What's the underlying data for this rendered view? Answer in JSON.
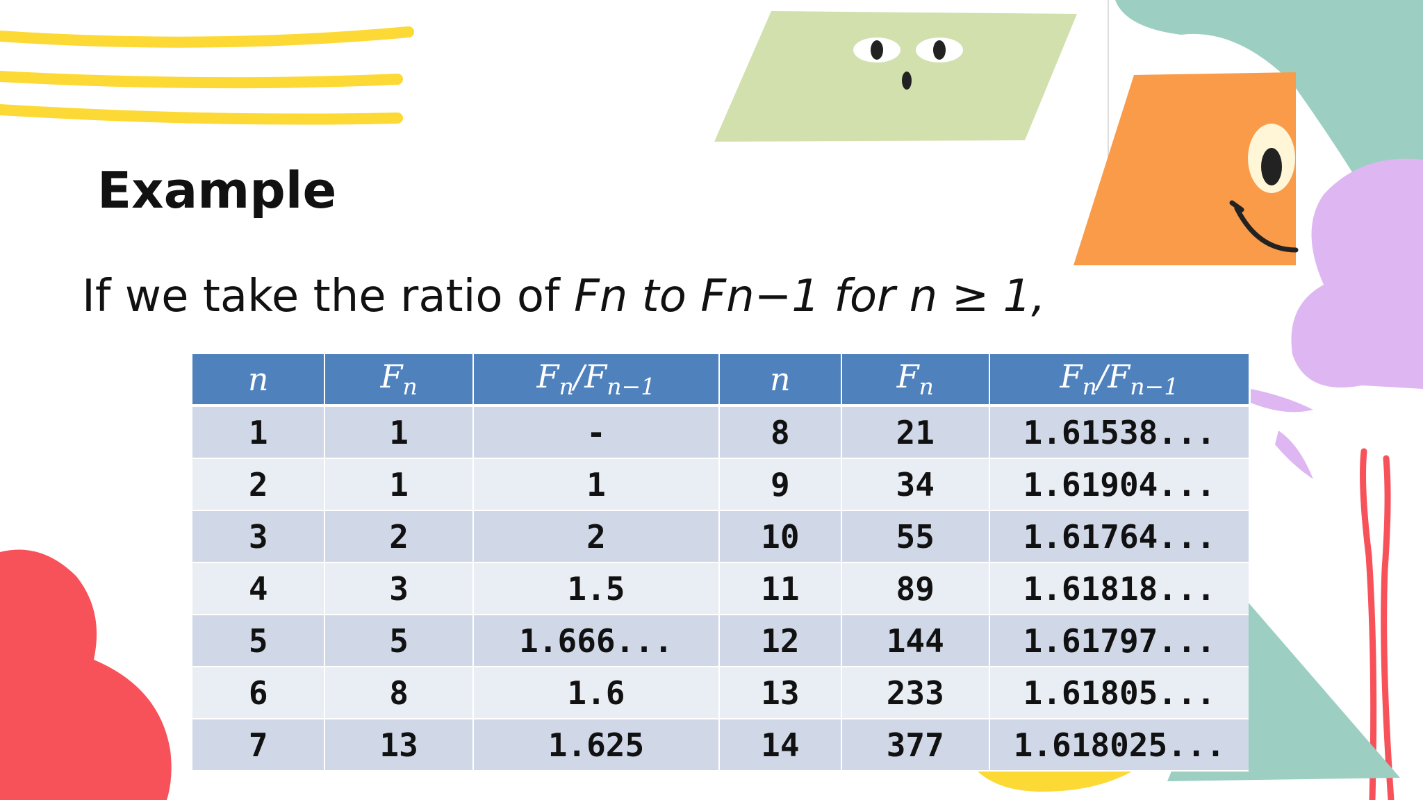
{
  "slide": {
    "title": "Example",
    "intro_plain": "If we take the ratio of ",
    "intro_italic": "Fn to Fn−1 for n ≥ 1",
    "intro_end": ","
  },
  "table": {
    "headers": {
      "n": "n",
      "F": "F",
      "sub_n": "n",
      "sub_n1": "n−1",
      "slash": "/"
    },
    "rows": [
      [
        "1",
        "1",
        "-",
        "8",
        "21",
        "1.61538..."
      ],
      [
        "2",
        "1",
        "1",
        "9",
        "34",
        "1.61904..."
      ],
      [
        "3",
        "2",
        "2",
        "10",
        "55",
        "1.61764..."
      ],
      [
        "4",
        "3",
        "1.5",
        "11",
        "89",
        "1.61818..."
      ],
      [
        "5",
        "5",
        "1.666...",
        "12",
        "144",
        "1.61797..."
      ],
      [
        "6",
        "8",
        "1.6",
        "13",
        "233",
        "1.61805..."
      ],
      [
        "7",
        "13",
        "1.625",
        "14",
        "377",
        "1.618025..."
      ]
    ]
  },
  "colors": {
    "header_bg": "#4f81bd",
    "row_dark": "#d0d8e8",
    "row_light": "#e9edf4",
    "yellow": "#fcd934",
    "green_shape": "#d1e0ad",
    "orange_shape": "#f99b49",
    "teal_shape": "#9ccfc1",
    "purple_shape": "#deb7f2",
    "red_shape": "#f7525a"
  }
}
